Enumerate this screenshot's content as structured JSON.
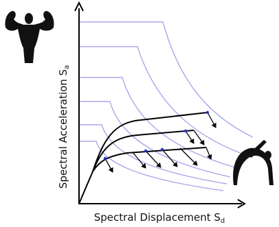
{
  "axes": {
    "y_label": {
      "text": "Spectral Acceleration S",
      "subscript": "a"
    },
    "x_label": {
      "text": "Spectral Displacement S",
      "subscript": "d"
    }
  }
}
